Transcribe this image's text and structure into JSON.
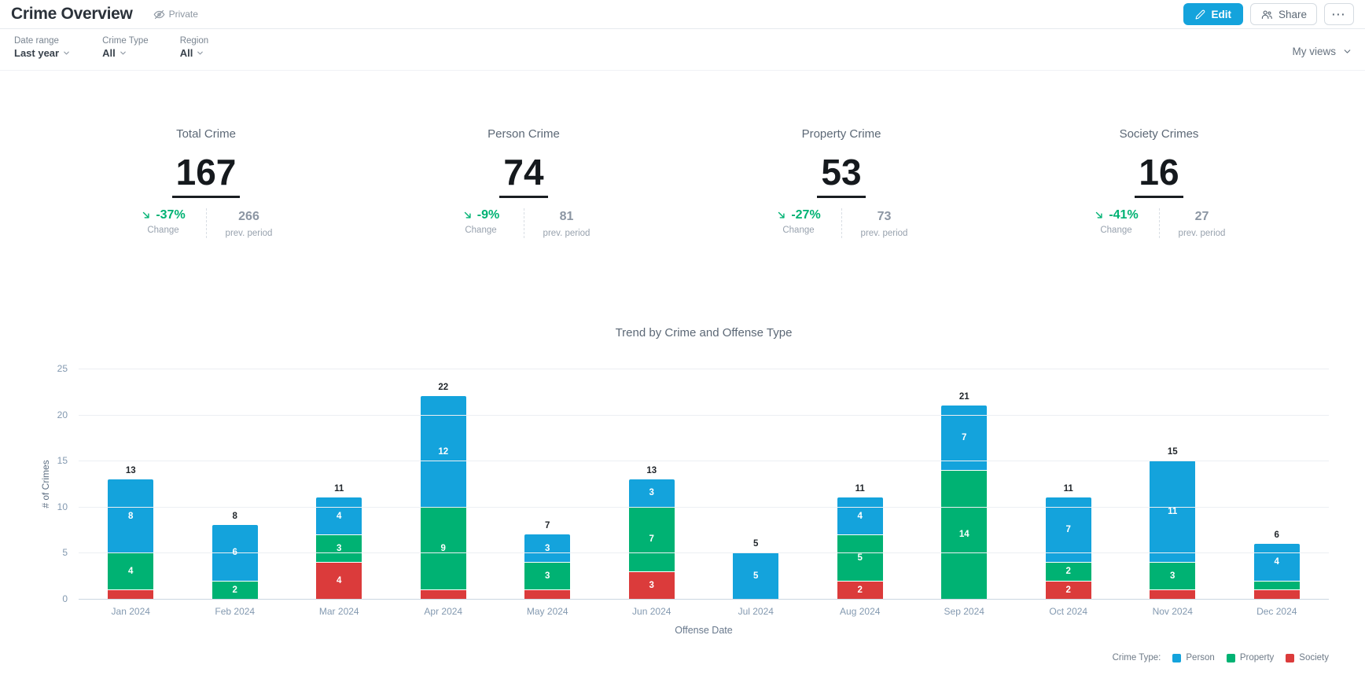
{
  "header": {
    "title": "Crime Overview",
    "privacy_label": "Private",
    "edit_label": "Edit",
    "share_label": "Share",
    "more_label": "···"
  },
  "filters": {
    "items": [
      {
        "label": "Date range",
        "value": "Last year"
      },
      {
        "label": "Crime Type",
        "value": "All"
      },
      {
        "label": "Region",
        "value": "All"
      }
    ],
    "views_label": "My views"
  },
  "kpis": [
    {
      "title": "Total Crime",
      "value": "167",
      "change": "-37%",
      "change_label": "Change",
      "prev": "266",
      "prev_label": "prev. period"
    },
    {
      "title": "Person Crime",
      "value": "74",
      "change": "-9%",
      "change_label": "Change",
      "prev": "81",
      "prev_label": "prev. period"
    },
    {
      "title": "Property Crime",
      "value": "53",
      "change": "-27%",
      "change_label": "Change",
      "prev": "73",
      "prev_label": "prev. period"
    },
    {
      "title": "Society Crimes",
      "value": "16",
      "change": "-41%",
      "change_label": "Change",
      "prev": "27",
      "prev_label": "prev. period"
    }
  ],
  "colors": {
    "accent_blue": "#14A3DC",
    "positive_green": "#00B273",
    "person": "#14A3DC",
    "property": "#00B273",
    "society": "#DB3B3B"
  },
  "chart_data": {
    "type": "bar",
    "stacked": true,
    "title": "Trend by Crime and Offense Type",
    "xlabel": "Offense Date",
    "ylabel": "# of Crimes",
    "ylim": [
      0,
      25
    ],
    "yticks": [
      0,
      5,
      10,
      15,
      20,
      25
    ],
    "grid": true,
    "categories": [
      "Jan 2024",
      "Feb 2024",
      "Mar 2024",
      "Apr 2024",
      "May 2024",
      "Jun 2024",
      "Jul 2024",
      "Aug 2024",
      "Sep 2024",
      "Oct 2024",
      "Nov 2024",
      "Dec 2024"
    ],
    "series": [
      {
        "name": "Person",
        "color": "#14A3DC",
        "values": [
          8,
          6,
          4,
          12,
          3,
          3,
          5,
          4,
          7,
          7,
          11,
          4
        ]
      },
      {
        "name": "Property",
        "color": "#00B273",
        "values": [
          4,
          2,
          3,
          9,
          3,
          7,
          0,
          5,
          14,
          2,
          3,
          1
        ]
      },
      {
        "name": "Society",
        "color": "#DB3B3B",
        "values": [
          1,
          0,
          4,
          1,
          1,
          3,
          0,
          2,
          0,
          2,
          1,
          1
        ]
      }
    ],
    "totals": [
      13,
      8,
      11,
      22,
      7,
      13,
      5,
      11,
      21,
      11,
      15,
      6
    ],
    "stack_order_bottom_to_top": [
      "Society",
      "Property",
      "Person"
    ],
    "legend_title": "Crime Type:",
    "legend_position": "bottom-right",
    "segment_label_min_value": 2
  }
}
